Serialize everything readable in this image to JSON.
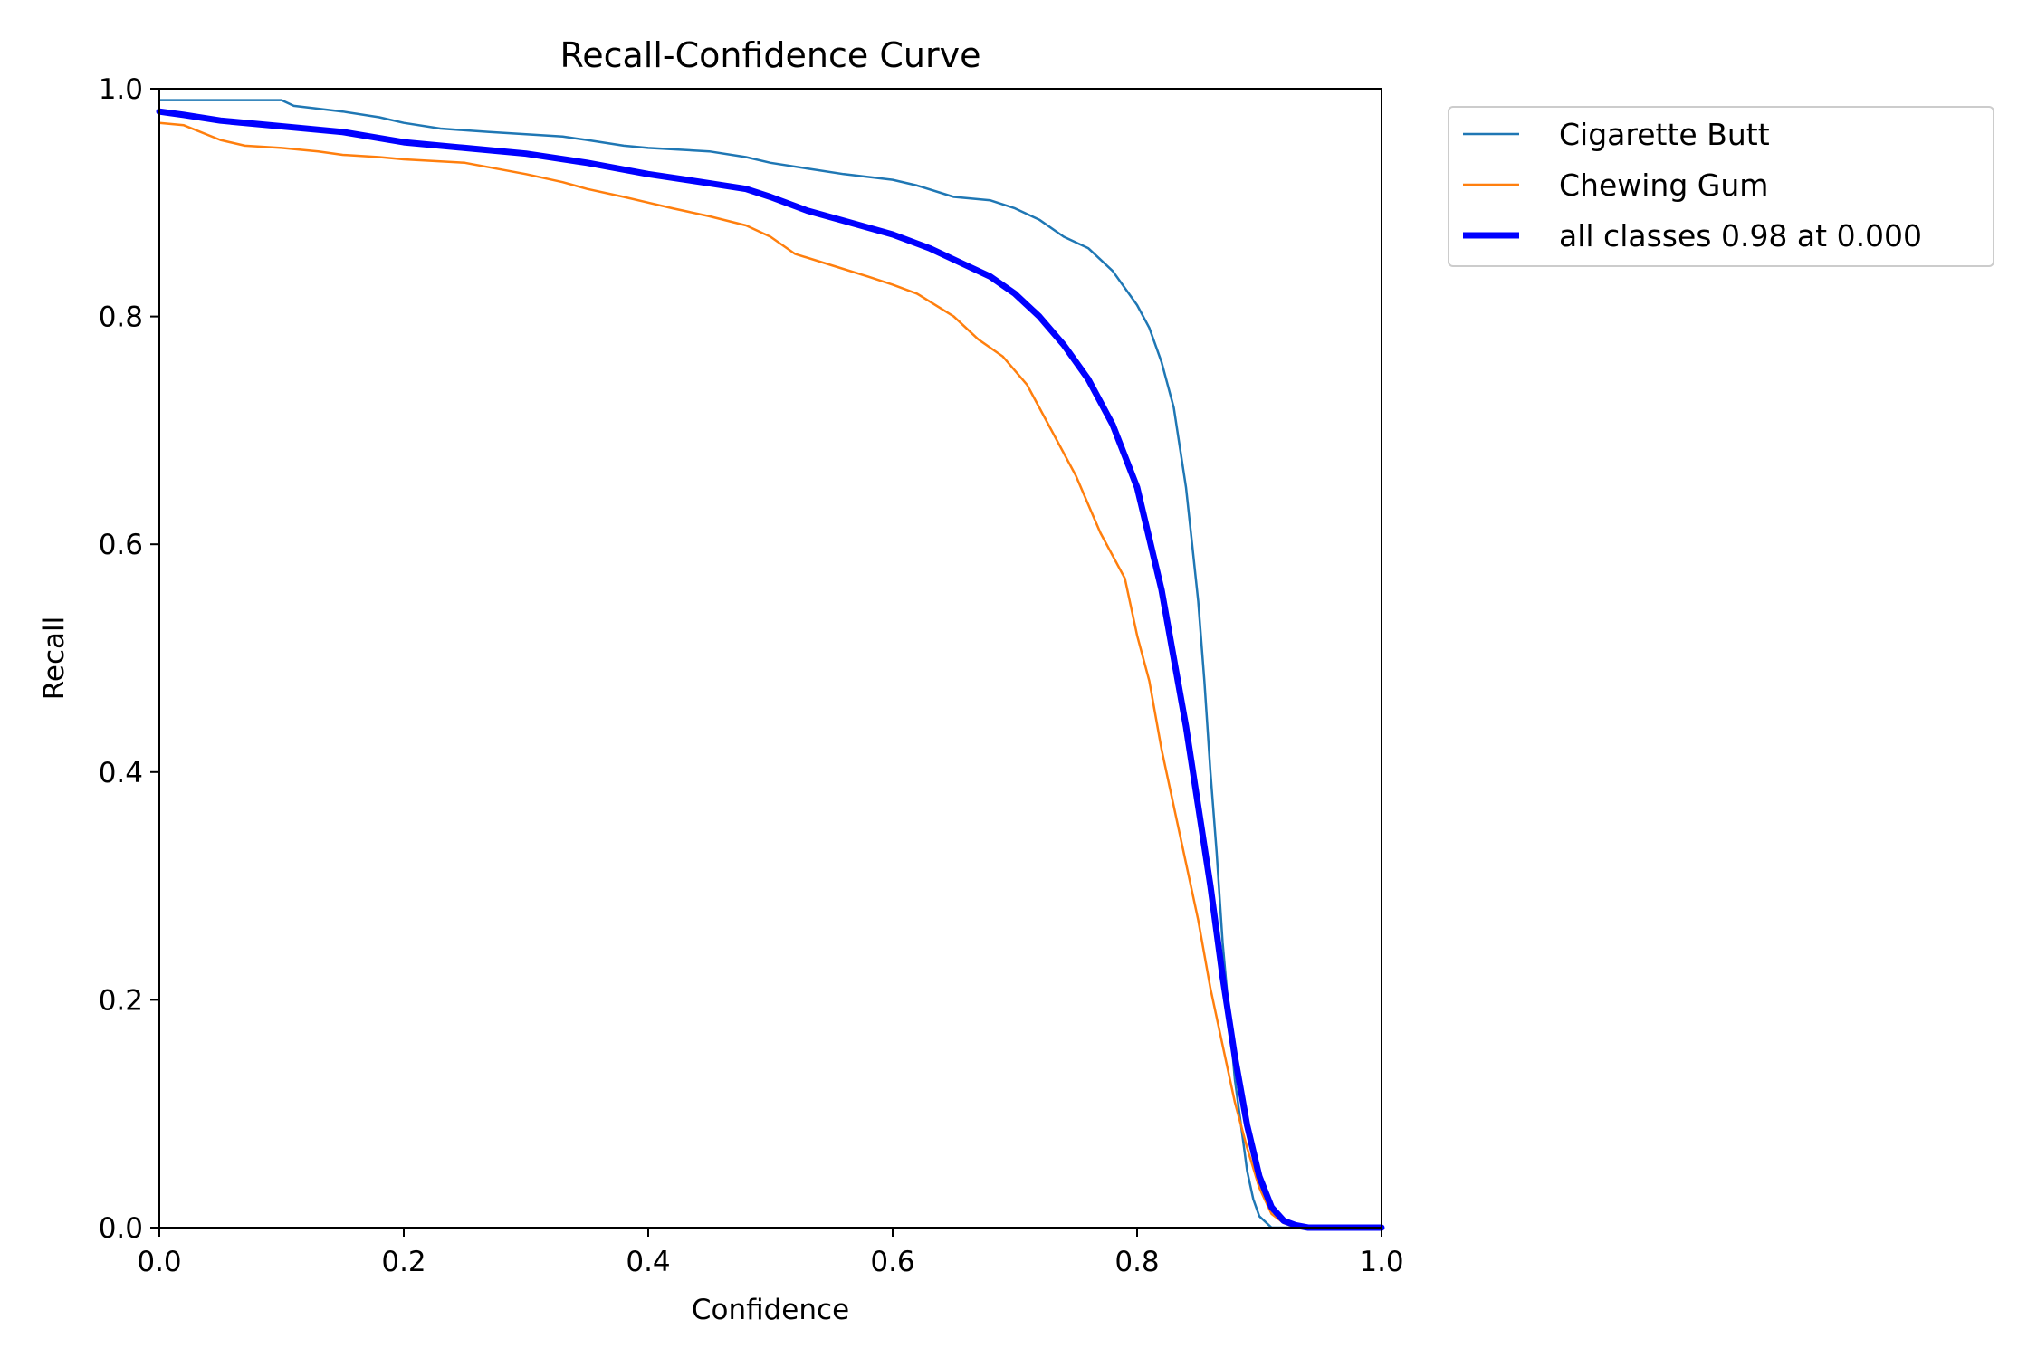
{
  "chart_data": {
    "type": "line",
    "title": "Recall-Confidence Curve",
    "xlabel": "Confidence",
    "ylabel": "Recall",
    "xlim": [
      0.0,
      1.0
    ],
    "ylim": [
      0.0,
      1.0
    ],
    "xticks": [
      "0.0",
      "0.2",
      "0.4",
      "0.6",
      "0.8",
      "1.0"
    ],
    "yticks": [
      "0.0",
      "0.2",
      "0.4",
      "0.6",
      "0.8",
      "1.0"
    ],
    "grid": false,
    "legend_position": "outside upper right",
    "series": [
      {
        "name": "Cigarette Butt",
        "color": "#1f77b4",
        "line_width": "thin",
        "x": [
          0.0,
          0.05,
          0.1,
          0.11,
          0.15,
          0.18,
          0.2,
          0.23,
          0.27,
          0.3,
          0.33,
          0.35,
          0.38,
          0.4,
          0.45,
          0.48,
          0.5,
          0.53,
          0.56,
          0.6,
          0.62,
          0.65,
          0.68,
          0.7,
          0.72,
          0.74,
          0.76,
          0.78,
          0.8,
          0.81,
          0.82,
          0.83,
          0.84,
          0.845,
          0.85,
          0.855,
          0.86,
          0.865,
          0.87,
          0.875,
          0.88,
          0.885,
          0.89,
          0.895,
          0.9,
          0.91,
          1.0
        ],
        "y": [
          0.99,
          0.99,
          0.99,
          0.985,
          0.98,
          0.975,
          0.97,
          0.965,
          0.962,
          0.96,
          0.958,
          0.955,
          0.95,
          0.948,
          0.945,
          0.94,
          0.935,
          0.93,
          0.925,
          0.92,
          0.915,
          0.905,
          0.902,
          0.895,
          0.885,
          0.87,
          0.86,
          0.84,
          0.81,
          0.79,
          0.76,
          0.72,
          0.65,
          0.6,
          0.55,
          0.48,
          0.4,
          0.33,
          0.25,
          0.19,
          0.13,
          0.09,
          0.05,
          0.025,
          0.01,
          0.0,
          0.0
        ]
      },
      {
        "name": "Chewing Gum",
        "color": "#ff7f0e",
        "line_width": "thin",
        "x": [
          0.0,
          0.02,
          0.05,
          0.07,
          0.1,
          0.13,
          0.15,
          0.18,
          0.2,
          0.25,
          0.3,
          0.33,
          0.35,
          0.38,
          0.4,
          0.42,
          0.45,
          0.48,
          0.5,
          0.52,
          0.55,
          0.58,
          0.6,
          0.62,
          0.65,
          0.67,
          0.69,
          0.71,
          0.73,
          0.75,
          0.77,
          0.79,
          0.8,
          0.81,
          0.82,
          0.83,
          0.84,
          0.85,
          0.86,
          0.87,
          0.88,
          0.89,
          0.9,
          0.91,
          0.92,
          0.93,
          1.0
        ],
        "y": [
          0.97,
          0.968,
          0.955,
          0.95,
          0.948,
          0.945,
          0.942,
          0.94,
          0.938,
          0.935,
          0.925,
          0.918,
          0.912,
          0.905,
          0.9,
          0.895,
          0.888,
          0.88,
          0.87,
          0.855,
          0.845,
          0.835,
          0.828,
          0.82,
          0.8,
          0.78,
          0.765,
          0.74,
          0.7,
          0.66,
          0.61,
          0.57,
          0.52,
          0.48,
          0.42,
          0.37,
          0.32,
          0.27,
          0.21,
          0.16,
          0.11,
          0.07,
          0.035,
          0.012,
          0.004,
          0.0,
          0.0
        ]
      },
      {
        "name": "all classes 0.98 at 0.000",
        "color": "#0000ff",
        "line_width": "thick",
        "x": [
          0.0,
          0.02,
          0.05,
          0.1,
          0.15,
          0.2,
          0.25,
          0.3,
          0.35,
          0.4,
          0.45,
          0.48,
          0.5,
          0.53,
          0.56,
          0.6,
          0.63,
          0.66,
          0.68,
          0.7,
          0.72,
          0.74,
          0.76,
          0.78,
          0.8,
          0.82,
          0.84,
          0.86,
          0.87,
          0.88,
          0.89,
          0.9,
          0.91,
          0.92,
          0.93,
          0.94,
          0.96,
          1.0
        ],
        "y": [
          0.98,
          0.977,
          0.972,
          0.967,
          0.962,
          0.953,
          0.948,
          0.943,
          0.935,
          0.925,
          0.917,
          0.912,
          0.905,
          0.893,
          0.884,
          0.872,
          0.86,
          0.845,
          0.835,
          0.82,
          0.8,
          0.775,
          0.745,
          0.705,
          0.65,
          0.56,
          0.44,
          0.3,
          0.22,
          0.15,
          0.09,
          0.045,
          0.018,
          0.006,
          0.002,
          0.0,
          0.0,
          0.0
        ]
      }
    ]
  }
}
